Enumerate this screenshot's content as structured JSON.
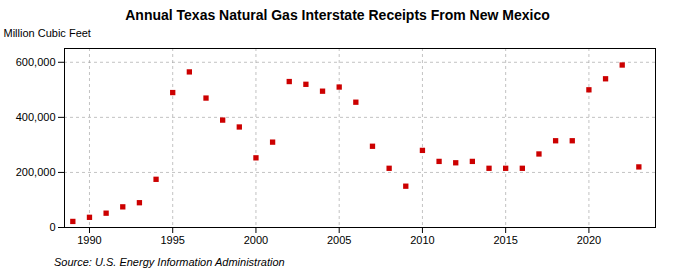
{
  "chart_data": {
    "type": "scatter",
    "title": "Annual Texas Natural Gas Interstate Receipts From New Mexico",
    "ylabel": "Million Cubic Feet",
    "source": "Source: U.S. Energy Information Administration",
    "x": [
      1989,
      1990,
      1991,
      1992,
      1993,
      1994,
      1995,
      1996,
      1997,
      1998,
      1999,
      2000,
      2001,
      2002,
      2003,
      2004,
      2005,
      2006,
      2007,
      2008,
      2009,
      2010,
      2011,
      2012,
      2013,
      2014,
      2015,
      2016,
      2017,
      2018,
      2019,
      2020,
      2021,
      2022,
      2023
    ],
    "values": [
      22000,
      37000,
      52000,
      75000,
      90000,
      175000,
      490000,
      565000,
      470000,
      390000,
      365000,
      253000,
      310000,
      530000,
      520000,
      495000,
      510000,
      455000,
      295000,
      215000,
      150000,
      280000,
      240000,
      235000,
      240000,
      215000,
      215000,
      215000,
      267000,
      315000,
      315000,
      500000,
      540000,
      590000,
      220000
    ],
    "color": "#cc0000",
    "marker": "square",
    "xlim": [
      1988.5,
      2024
    ],
    "xticks": [
      1990,
      1995,
      2000,
      2005,
      2010,
      2015,
      2020
    ],
    "ylim": [
      0,
      650000
    ],
    "yticks": [
      0,
      {
        "value": 200000,
        "label": "200,000"
      },
      {
        "value": 400000,
        "label": "400,000"
      },
      {
        "value": 600000,
        "label": "600,000"
      }
    ],
    "grid": true
  }
}
